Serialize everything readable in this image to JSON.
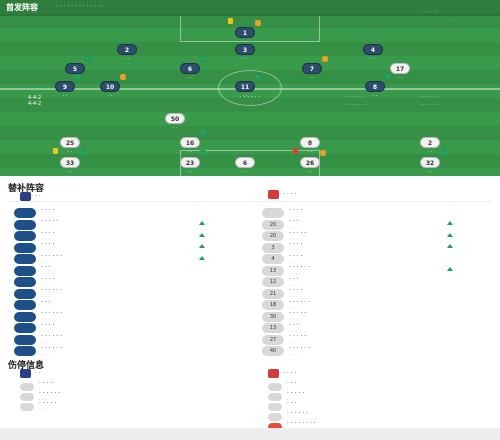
{
  "pitch": {
    "title": "首发阵容",
    "subtitle": "· · · · · · · · · · · · ·",
    "home_meta": "· ·",
    "away_meta": "· · · · · ·",
    "away_meta2": "· ·",
    "center_label": "· · · · · ·",
    "home_formation": "4-4-2",
    "away_formation": "4-4-2",
    "home_side_list": [
      "· · · · · ·",
      "· · · · · · ·"
    ],
    "away_side_list": [
      "· · · · · ·",
      "· · · · · ·"
    ],
    "players": [
      {
        "n": "1",
        "name": "· ·",
        "rating": "·",
        "team": "home"
      },
      {
        "n": "2",
        "name": "· ·",
        "rating": "",
        "team": "home"
      },
      {
        "n": "3",
        "name": "· ·",
        "rating": "",
        "team": "home"
      },
      {
        "n": "4",
        "name": "· ·",
        "rating": "",
        "team": "home"
      },
      {
        "n": "5",
        "name": "· ·",
        "rating": "·",
        "team": "home"
      },
      {
        "n": "6",
        "name": "· ·",
        "rating": "·",
        "team": "home"
      },
      {
        "n": "7",
        "name": "· ·",
        "rating": "·",
        "team": "home"
      },
      {
        "n": "8",
        "name": "· ·",
        "rating": "·",
        "team": "home"
      },
      {
        "n": "9",
        "name": "· ·",
        "rating": "·",
        "team": "home"
      },
      {
        "n": "10",
        "name": "· ·",
        "rating": "·",
        "team": "home"
      },
      {
        "n": "11",
        "name": "· ·",
        "rating": "·",
        "team": "home"
      },
      {
        "n": "50",
        "name": "· ·",
        "rating": "",
        "team": "away"
      },
      {
        "n": "25",
        "name": "· ·",
        "rating": "",
        "team": "away"
      },
      {
        "n": "16",
        "name": "· ·",
        "rating": "·",
        "team": "away"
      },
      {
        "n": "8",
        "name": "· ·",
        "rating": "",
        "team": "away"
      },
      {
        "n": "2",
        "name": "· ·",
        "rating": "",
        "team": "away"
      },
      {
        "n": "33",
        "name": "· ·",
        "rating": "·",
        "team": "away"
      },
      {
        "n": "23",
        "name": "· ·",
        "rating": "·",
        "team": "away"
      },
      {
        "n": "26",
        "name": "· ·",
        "rating": "·",
        "team": "away"
      },
      {
        "n": "32",
        "name": "· ·",
        "rating": "·",
        "team": "away"
      },
      {
        "n": "6",
        "name": "· ·",
        "rating": "",
        "team": "away"
      },
      {
        "n": "17",
        "name": "· ·",
        "rating": "",
        "team": "away"
      }
    ]
  },
  "subs": {
    "title": "替补阵容",
    "home_team": "· ·",
    "away_team": "· · · ·",
    "home": [
      {
        "n": "",
        "name": "· · · ·",
        "sub": "· · ·",
        "time": ""
      },
      {
        "n": "",
        "name": "· · · · ·",
        "sub": "· · ·",
        "time": "·"
      },
      {
        "n": "",
        "name": "· · · ·",
        "sub": "· · ·",
        "time": "·"
      },
      {
        "n": "",
        "name": "· · · ·",
        "sub": "· · ·",
        "time": "·"
      },
      {
        "n": "",
        "name": "· · · · · ·",
        "sub": "· · ·",
        "time": "·"
      },
      {
        "n": "",
        "name": "· · ·",
        "sub": "· · ·",
        "time": ""
      },
      {
        "n": "",
        "name": "· · · ·",
        "sub": "· · ·",
        "time": ""
      },
      {
        "n": "",
        "name": "· · · · · ·",
        "sub": "· · ·",
        "time": ""
      },
      {
        "n": "",
        "name": "· · ·",
        "sub": "· · ·",
        "time": ""
      },
      {
        "n": "",
        "name": "· · · · · ·",
        "sub": "· · ·",
        "time": ""
      },
      {
        "n": "",
        "name": "· · · ·",
        "sub": "· · ·",
        "time": ""
      },
      {
        "n": "",
        "name": "· · · · · ·",
        "sub": "· · ·",
        "time": ""
      },
      {
        "n": "",
        "name": "· · · · · ·",
        "sub": "· · ·",
        "time": ""
      }
    ],
    "away": [
      {
        "n": "",
        "name": "· · · ·",
        "sub": "· · ·",
        "time": ""
      },
      {
        "n": "20",
        "name": "· · ·",
        "sub": "· · ·",
        "time": "·"
      },
      {
        "n": "20",
        "name": "· · · · ·",
        "sub": "· · ·",
        "time": "·"
      },
      {
        "n": "3",
        "name": "· · · ·",
        "sub": "· · ·",
        "time": "·"
      },
      {
        "n": "4",
        "name": "· · · ·",
        "sub": "· · ·",
        "time": ""
      },
      {
        "n": "13",
        "name": "· · · · · ·",
        "sub": "· · ·",
        "time": "·"
      },
      {
        "n": "12",
        "name": "· · ·",
        "sub": "· · ·",
        "time": ""
      },
      {
        "n": "21",
        "name": "· · · ·",
        "sub": "· · ·",
        "time": ""
      },
      {
        "n": "18",
        "name": "· · · · · ·",
        "sub": "· · ·",
        "time": ""
      },
      {
        "n": "30",
        "name": "· · · · ·",
        "sub": "· · ·",
        "time": ""
      },
      {
        "n": "13",
        "name": "· · ·",
        "sub": "· · ·",
        "time": ""
      },
      {
        "n": "27",
        "name": "· · · · ·",
        "sub": "· · ·",
        "time": ""
      },
      {
        "n": "40",
        "name": "· · · · · ·",
        "sub": "· · ·",
        "time": ""
      }
    ]
  },
  "injuries": {
    "title": "伤停信息",
    "home_team": "· ·",
    "away_team": "· · · ·",
    "home": [
      {
        "name": "· · · ·",
        "sub": "·"
      },
      {
        "name": "· · · · · ·",
        "sub": "· · ·"
      },
      {
        "name": "· · · · ·",
        "sub": "· ·"
      }
    ],
    "away": [
      {
        "name": "· · ·",
        "sub": "·"
      },
      {
        "name": "· · · · ·",
        "sub": "·"
      },
      {
        "name": "· · ·",
        "sub": "·"
      },
      {
        "name": "· · · · · ·",
        "sub": "·"
      },
      {
        "name": "· · · · · · · ·",
        "sub": "· ·"
      }
    ]
  },
  "colors": {
    "home_shirt": "#2d4d6d",
    "away_shirt": "#f2f2f2",
    "pitch": "#3a9a4c",
    "accent_green": "#1f9b5c",
    "injury_red": "#e74c3c"
  }
}
